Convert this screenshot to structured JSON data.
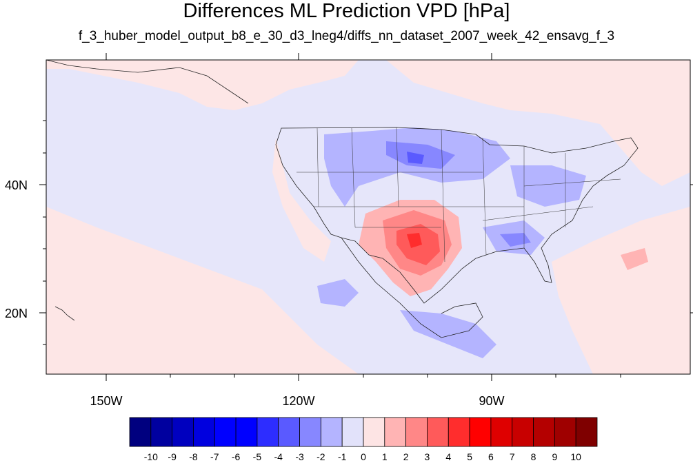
{
  "title": "Differences ML Prediction VPD [hPa]",
  "subtitle": "f_3_huber_model_output_b8_e_30_d3_lneg4/diffs_nn_dataset_2007_week_42_ensavg_f_3",
  "map": {
    "lon_labels": [
      "150W",
      "120W",
      "90W"
    ],
    "lat_labels": [
      "40N",
      "20N"
    ],
    "background_color": "#e6e6fa",
    "positive_tint": "#fde6e6",
    "hotspot_region": "southern Great Plains / Texas"
  },
  "colorbar": {
    "labels": [
      "-10",
      "-9",
      "-8",
      "-7",
      "-6",
      "-5",
      "-4",
      "-3",
      "-2",
      "-1",
      "0",
      "1",
      "2",
      "3",
      "4",
      "5",
      "6",
      "7",
      "8",
      "9",
      "10"
    ],
    "colors": [
      "#00007f",
      "#00009f",
      "#0000bf",
      "#0000df",
      "#0000ff",
      "#0000ff",
      "#2d2dff",
      "#5a5aff",
      "#8787ff",
      "#b4b4ff",
      "#e2e2fa",
      "#fde4e4",
      "#ffb4b4",
      "#ff8787",
      "#ff5a5a",
      "#ff2d2d",
      "#ff0000",
      "#df0000",
      "#c80000",
      "#b40000",
      "#9f0000",
      "#7f0000"
    ]
  }
}
